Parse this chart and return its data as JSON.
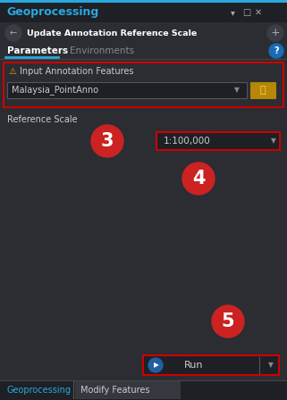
{
  "bg_color": "#2b2d33",
  "title_bar_color": "#1e2025",
  "header_text": "Geoprocessing",
  "header_color": "#29a8e0",
  "title_text": "Update Annotation Reference Scale",
  "tab_active": "Parameters",
  "tab_inactive": "Environments",
  "tab_underline_color": "#29a8e0",
  "label1": "Input Annotation Features",
  "dropdown1_text": "Malaysia_PointAnno",
  "dropdown1_bg": "#1e2025",
  "label2": "Reference Scale",
  "dropdown2_text": "1:100,000",
  "dropdown2_bg": "#1e2025",
  "red_border_color": "#cc0000",
  "run_button_text": "Run",
  "run_button_bg": "#1e2025",
  "run_button_border": "#cc0000",
  "circle_color": "#cc2222",
  "bottom_tab1": "Geoprocessing",
  "bottom_tab2": "Modify Features",
  "bottom_bg": "#1e2025",
  "warning_color": "#e8a000",
  "titlebar_bg": "#1e2025",
  "titlebar_top_line": "#29a8e0",
  "folder_bg": "#b8860b",
  "play_circle_color": "#2060a0"
}
